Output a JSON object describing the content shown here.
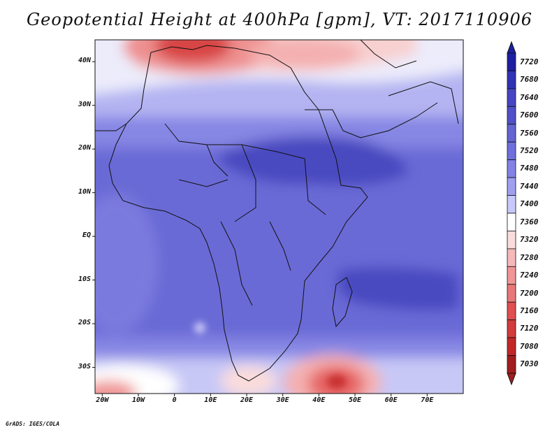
{
  "title": "Geopotential Height at 400hPa [gpm], VT: 2017110906",
  "credit": "GrADS: IGES/COLA",
  "map": {
    "lon_range": [
      -22,
      80
    ],
    "lat_range": [
      -36,
      45
    ],
    "y_ticks": [
      {
        "lat": 40,
        "label": "40N"
      },
      {
        "lat": 30,
        "label": "30N"
      },
      {
        "lat": 20,
        "label": "20N"
      },
      {
        "lat": 10,
        "label": "10N"
      },
      {
        "lat": 0,
        "label": "EQ"
      },
      {
        "lat": -10,
        "label": "10S"
      },
      {
        "lat": -20,
        "label": "20S"
      },
      {
        "lat": -30,
        "label": "30S"
      }
    ],
    "x_ticks": [
      {
        "lon": -20,
        "label": "20W"
      },
      {
        "lon": -10,
        "label": "10W"
      },
      {
        "lon": 0,
        "label": "0"
      },
      {
        "lon": 10,
        "label": "10E"
      },
      {
        "lon": 20,
        "label": "20E"
      },
      {
        "lon": 30,
        "label": "30E"
      },
      {
        "lon": 40,
        "label": "40E"
      },
      {
        "lon": 50,
        "label": "50E"
      },
      {
        "lon": 60,
        "label": "60E"
      },
      {
        "lon": 70,
        "label": "70E"
      }
    ]
  },
  "colorbar": {
    "levels": [
      "7720",
      "7680",
      "7640",
      "7600",
      "7560",
      "7520",
      "7480",
      "7440",
      "7400",
      "7360",
      "7320",
      "7280",
      "7240",
      "7200",
      "7160",
      "7120",
      "7080",
      "7030"
    ],
    "colors": [
      "#1e1ea0",
      "#3232b4",
      "#4646c3",
      "#5050c8",
      "#6464d2",
      "#7070dc",
      "#8282e6",
      "#a0a0f0",
      "#c8c8fa",
      "#ffffff",
      "#fadcdc",
      "#f5b9b9",
      "#f09696",
      "#e87878",
      "#e05050",
      "#d23c3c",
      "#c32828",
      "#a01e1e"
    ]
  }
}
